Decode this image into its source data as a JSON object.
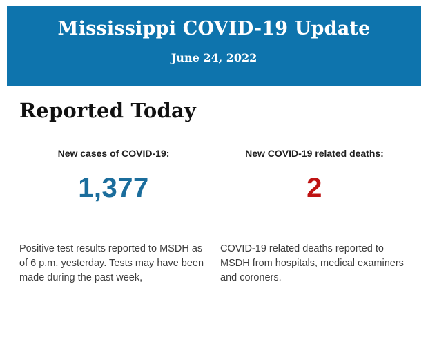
{
  "header": {
    "title": "Mississippi COVID-19 Update",
    "date": "June 24, 2022",
    "background_color": "#0e74ad",
    "text_color": "#ffffff"
  },
  "section": {
    "heading": "Reported Today"
  },
  "stats": [
    {
      "label": "New cases of COVID-19:",
      "value": "1,377",
      "value_color": "#1b6d9c",
      "description": "Positive test results reported to MSDH as of 6 p.m. yesterday. Tests may have been made during the past week,"
    },
    {
      "label": "New COVID-19 related deaths:",
      "value": "2",
      "value_color": "#bf1313",
      "description": "COVID-19 related deaths reported to MSDH from hospitals, medical examiners and coroners."
    }
  ]
}
